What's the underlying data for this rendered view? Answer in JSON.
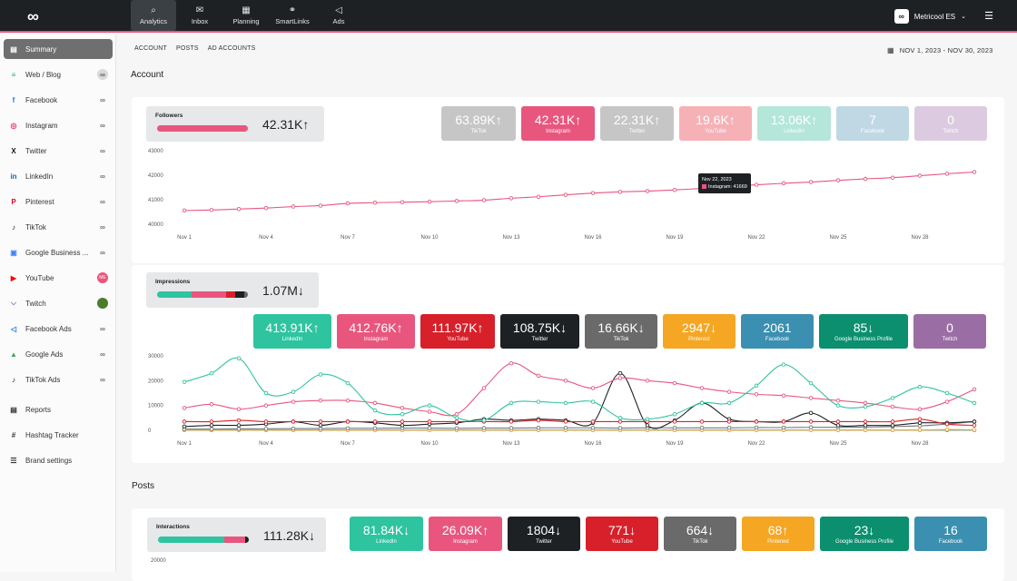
{
  "topbar": {
    "logo_icon": "infinity-logo",
    "nav": [
      {
        "label": "Analytics",
        "icon": "analytics-icon",
        "glyph": "⌕",
        "active": true
      },
      {
        "label": "Inbox",
        "icon": "inbox-icon",
        "glyph": "✉",
        "active": false
      },
      {
        "label": "Planning",
        "icon": "calendar-icon",
        "glyph": "▦",
        "active": false
      },
      {
        "label": "SmartLinks",
        "icon": "link-icon",
        "glyph": "⚭",
        "active": false
      },
      {
        "label": "Ads",
        "icon": "megaphone-icon",
        "glyph": "◁",
        "active": false
      }
    ],
    "account_name": "Metricool ES",
    "account_badge": "∞"
  },
  "sidebar": {
    "items": [
      {
        "label": "Summary",
        "icon": "summary-icon",
        "glyph": "▤",
        "color": "#333333",
        "active": true,
        "trail": "none"
      },
      {
        "label": "Web / Blog",
        "icon": "rss-icon",
        "glyph": "≡",
        "color": "#2aa86b",
        "active": false,
        "trail": "avatar-grey"
      },
      {
        "label": "Facebook",
        "icon": "facebook-icon",
        "glyph": "f",
        "color": "#1877f2",
        "active": false,
        "trail": "link"
      },
      {
        "label": "Instagram",
        "icon": "instagram-icon",
        "glyph": "◎",
        "color": "#e1306c",
        "active": false,
        "trail": "link"
      },
      {
        "label": "Twitter",
        "icon": "x-icon",
        "glyph": "X",
        "color": "#111111",
        "active": false,
        "trail": "link"
      },
      {
        "label": "LinkedIn",
        "icon": "linkedin-icon",
        "glyph": "in",
        "color": "#0a66c2",
        "active": false,
        "trail": "link"
      },
      {
        "label": "Pinterest",
        "icon": "pinterest-icon",
        "glyph": "P",
        "color": "#e60023",
        "active": false,
        "trail": "link"
      },
      {
        "label": "TikTok",
        "icon": "tiktok-icon",
        "glyph": "♪",
        "color": "#111111",
        "active": false,
        "trail": "link"
      },
      {
        "label": "Google Business ...",
        "icon": "google-business-icon",
        "glyph": "▣",
        "color": "#4285f4",
        "active": false,
        "trail": "link"
      },
      {
        "label": "YouTube",
        "icon": "youtube-icon",
        "glyph": "▶",
        "color": "#ff0000",
        "active": false,
        "trail": "avatar-pink"
      },
      {
        "label": "Twitch",
        "icon": "twitch-icon",
        "glyph": "⌵",
        "color": "#9146ff",
        "active": false,
        "trail": "avatar-green"
      },
      {
        "label": "Facebook Ads",
        "icon": "facebook-ads-icon",
        "glyph": "◁",
        "color": "#1877f2",
        "active": false,
        "trail": "link"
      },
      {
        "label": "Google Ads",
        "icon": "google-ads-icon",
        "glyph": "▲",
        "color": "#34a853",
        "active": false,
        "trail": "link"
      },
      {
        "label": "TikTok Ads",
        "icon": "tiktok-ads-icon",
        "glyph": "♪",
        "color": "#111111",
        "active": false,
        "trail": "link"
      },
      {
        "label": "Reports",
        "icon": "reports-icon",
        "glyph": "▤",
        "color": "#333333",
        "active": false,
        "trail": "none"
      },
      {
        "label": "Hashtag Tracker",
        "icon": "hashtag-icon",
        "glyph": "#",
        "color": "#333333",
        "active": false,
        "trail": "none"
      },
      {
        "label": "Brand settings",
        "icon": "settings-sliders-icon",
        "glyph": "☰",
        "color": "#333333",
        "active": false,
        "trail": "none"
      }
    ],
    "link_glyph": "∞",
    "youtube_avatar": "ME"
  },
  "subtabs": [
    "ACCOUNT",
    "POSTS",
    "AD ACCOUNTS"
  ],
  "date_range": "NOV 1, 2023 - NOV 30, 2023",
  "sections": {
    "account": "Account",
    "posts": "Posts"
  },
  "followers": {
    "label": "Followers",
    "value": "42.31K",
    "trend": "↑",
    "bar": [
      {
        "color": "#e8567e",
        "frac": 1.0
      }
    ],
    "tiles": [
      {
        "value": "63.89K",
        "trend": "↑",
        "label": "TikTok",
        "color": "#c6c6c6"
      },
      {
        "value": "42.31K",
        "trend": "↑",
        "label": "Instagram",
        "color": "#e8567e"
      },
      {
        "value": "22.31K",
        "trend": "↑",
        "label": "Twitter",
        "color": "#c6c6c6"
      },
      {
        "value": "19.6K",
        "trend": "↑",
        "label": "YouTube",
        "color": "#f6b1b7"
      },
      {
        "value": "13.06K",
        "trend": "↑",
        "label": "LinkedIn",
        "color": "#b4e6d9"
      },
      {
        "value": "7",
        "trend": "",
        "label": "Facebook",
        "color": "#bfd8e4"
      },
      {
        "value": "0",
        "trend": "",
        "label": "Twitch",
        "color": "#dccbe0"
      }
    ]
  },
  "impressions": {
    "label": "Impressions",
    "value": "1.07M",
    "trend": "↓",
    "bar": [
      {
        "color": "#2ec4a0",
        "frac": 0.38
      },
      {
        "color": "#e8567e",
        "frac": 0.38
      },
      {
        "color": "#d7202a",
        "frac": 0.1
      },
      {
        "color": "#1d2124",
        "frac": 0.1
      },
      {
        "color": "#666666",
        "frac": 0.04
      }
    ],
    "tiles": [
      {
        "value": "413.91K",
        "trend": "↑",
        "label": "LinkedIn",
        "color": "#2ec4a0"
      },
      {
        "value": "412.76K",
        "trend": "↑",
        "label": "Instagram",
        "color": "#e8567e"
      },
      {
        "value": "111.97K",
        "trend": "↑",
        "label": "YouTube",
        "color": "#d7202a"
      },
      {
        "value": "108.75K",
        "trend": "↓",
        "label": "Twitter",
        "color": "#1d2124"
      },
      {
        "value": "16.66K",
        "trend": "↓",
        "label": "TikTok",
        "color": "#6a6a6a"
      },
      {
        "value": "2947",
        "trend": "↓",
        "label": "Pinterest",
        "color": "#f5a623"
      },
      {
        "value": "2061",
        "trend": "",
        "label": "Facebook",
        "color": "#3b8fb0"
      },
      {
        "value": "85",
        "trend": "↓",
        "label": "Google Business Profile",
        "color": "#0b8f6f"
      },
      {
        "value": "0",
        "trend": "",
        "label": "Twitch",
        "color": "#9a6ea4"
      }
    ]
  },
  "interactions": {
    "label": "Interactions",
    "value": "111.28K",
    "trend": "↓",
    "bar": [
      {
        "color": "#2ec4a0",
        "frac": 0.73
      },
      {
        "color": "#e8567e",
        "frac": 0.23
      },
      {
        "color": "#1d2124",
        "frac": 0.04
      }
    ],
    "tiles": [
      {
        "value": "81.84K",
        "trend": "↓",
        "label": "LinkedIn",
        "color": "#2ec4a0"
      },
      {
        "value": "26.09K",
        "trend": "↑",
        "label": "Instagram",
        "color": "#e8567e"
      },
      {
        "value": "1804",
        "trend": "↓",
        "label": "Twitter",
        "color": "#1d2124"
      },
      {
        "value": "771",
        "trend": "↓",
        "label": "YouTube",
        "color": "#d7202a"
      },
      {
        "value": "664",
        "trend": "↓",
        "label": "TikTok",
        "color": "#6a6a6a"
      },
      {
        "value": "68",
        "trend": "↑",
        "label": "Pinterest",
        "color": "#f5a623"
      },
      {
        "value": "23",
        "trend": "↓",
        "label": "Google Business Profile",
        "color": "#0b8f6f"
      },
      {
        "value": "16",
        "trend": "",
        "label": "Facebook",
        "color": "#3b8fb0"
      }
    ],
    "y_first_tick": "20000"
  },
  "chart_data": [
    {
      "type": "line",
      "x_ticks": [
        "Nov 1",
        "Nov 4",
        "Nov 7",
        "Nov 10",
        "Nov 13",
        "Nov 16",
        "Nov 19",
        "Nov 22",
        "Nov 25",
        "Nov 28"
      ],
      "y_ticks": [
        40000,
        41000,
        42000,
        43000
      ],
      "ylim": [
        40000,
        43000
      ],
      "series": [
        {
          "name": "Instagram",
          "color": "#e8567e",
          "values": [
            40560,
            40580,
            40620,
            40660,
            40720,
            40760,
            40850,
            40880,
            40900,
            40920,
            40950,
            40980,
            41060,
            41120,
            41200,
            41270,
            41320,
            41350,
            41400,
            41460,
            41530,
            41610,
            41669,
            41720,
            41790,
            41850,
            41900,
            41980,
            42060,
            42130
          ]
        }
      ],
      "tooltip": {
        "title": "Nov 22, 2023",
        "series": "Instagram",
        "value": "41669"
      }
    },
    {
      "type": "line",
      "x_ticks": [
        "Nov 1",
        "Nov 4",
        "Nov 7",
        "Nov 10",
        "Nov 13",
        "Nov 16",
        "Nov 19",
        "Nov 22",
        "Nov 25",
        "Nov 28"
      ],
      "y_ticks": [
        0,
        10000,
        20000,
        30000
      ],
      "ylim": [
        0,
        30000
      ],
      "series": [
        {
          "name": "LinkedIn",
          "color": "#2ec4a0",
          "values": [
            19500,
            23000,
            29000,
            15000,
            15500,
            22500,
            19000,
            8000,
            6500,
            10000,
            5000,
            4000,
            11000,
            11500,
            11000,
            11500,
            5000,
            4500,
            6500,
            11000,
            11000,
            18000,
            26500,
            19000,
            10000,
            9500,
            13000,
            17500,
            15000,
            11000
          ]
        },
        {
          "name": "Instagram",
          "color": "#e8567e",
          "values": [
            9000,
            10500,
            8500,
            10000,
            11500,
            12000,
            12000,
            11000,
            9000,
            7500,
            6500,
            17000,
            27000,
            22000,
            20000,
            17000,
            21000,
            20000,
            19000,
            17000,
            15500,
            14500,
            14000,
            13000,
            12000,
            11000,
            9500,
            8500,
            11500,
            16500
          ]
        },
        {
          "name": "YouTube",
          "color": "#d7202a",
          "values": [
            3500,
            3500,
            4000,
            3500,
            3500,
            3500,
            3500,
            3500,
            3500,
            3500,
            3500,
            3500,
            3500,
            4000,
            3500,
            3500,
            3500,
            3500,
            3500,
            3500,
            3500,
            3500,
            3500,
            3500,
            3500,
            3500,
            3500,
            4500,
            2500,
            2000
          ]
        },
        {
          "name": "Twitter",
          "color": "#1d2124",
          "values": [
            1500,
            2000,
            2000,
            2500,
            3500,
            2000,
            3500,
            3000,
            2000,
            2500,
            3000,
            4500,
            4000,
            4500,
            4000,
            3000,
            23000,
            2000,
            4000,
            11000,
            4500,
            3500,
            3500,
            7000,
            2000,
            2000,
            2000,
            3000,
            3000,
            3500
          ]
        },
        {
          "name": "TikTok",
          "color": "#777777",
          "values": [
            500,
            500,
            600,
            600,
            700,
            700,
            800,
            800,
            900,
            900,
            800,
            900,
            900,
            1000,
            1000,
            1000,
            900,
            1000,
            1000,
            1000,
            1000,
            1100,
            1100,
            1200,
            1200,
            1300,
            1500,
            1800,
            2500,
            3500
          ]
        },
        {
          "name": "Pinterest",
          "color": "#f5a623",
          "values": [
            100,
            100,
            100,
            100,
            100,
            100,
            100,
            100,
            100,
            100,
            100,
            100,
            100,
            100,
            100,
            100,
            100,
            100,
            100,
            100,
            100,
            100,
            100,
            100,
            100,
            100,
            100,
            100,
            300,
            200
          ]
        },
        {
          "name": "Facebook",
          "color": "#3b8fb0",
          "values": [
            70,
            70,
            70,
            70,
            70,
            70,
            70,
            70,
            70,
            70,
            70,
            70,
            70,
            70,
            70,
            70,
            70,
            70,
            70,
            70,
            70,
            70,
            70,
            70,
            70,
            70,
            70,
            70,
            70,
            70
          ]
        }
      ]
    }
  ]
}
